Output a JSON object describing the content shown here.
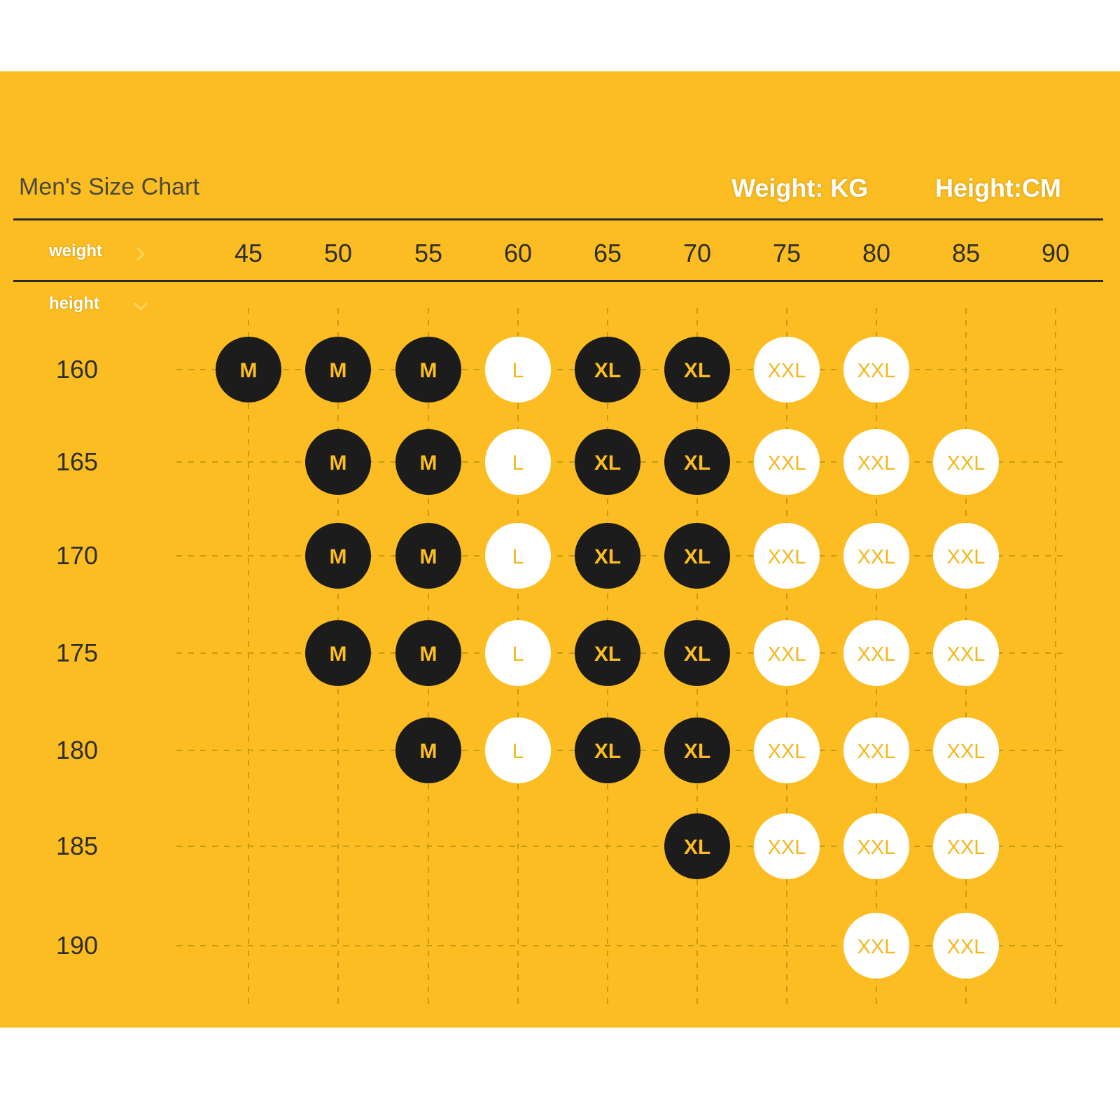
{
  "title": "Men's Size Chart",
  "units": {
    "weight": "Weight: KG",
    "height": "Height:CM"
  },
  "axis": {
    "weight_label": "weight",
    "height_label": "height"
  },
  "colors": {
    "background": "#FBBD22",
    "dark_circle": "#1c1c1c",
    "dark_text": "#FBBD22",
    "light_circle": "#ffffff",
    "light_text": "#F2B81E"
  },
  "icons": {
    "weight_arrow": "chevron-right-icon",
    "height_arrow": "chevron-down-icon"
  },
  "chart_data": {
    "type": "table",
    "weights": [
      "45",
      "50",
      "55",
      "60",
      "65",
      "70",
      "75",
      "80",
      "85",
      "90"
    ],
    "heights": [
      "160",
      "165",
      "170",
      "175",
      "180",
      "185",
      "190"
    ],
    "grid": "dashed",
    "rows": [
      [
        "M",
        "M",
        "M",
        "L",
        "XL",
        "XL",
        "XXL",
        "XXL",
        "",
        ""
      ],
      [
        "",
        "M",
        "M",
        "L",
        "XL",
        "XL",
        "XXL",
        "XXL",
        "XXL",
        ""
      ],
      [
        "",
        "M",
        "M",
        "L",
        "XL",
        "XL",
        "XXL",
        "XXL",
        "XXL",
        ""
      ],
      [
        "",
        "M",
        "M",
        "L",
        "XL",
        "XL",
        "XXL",
        "XXL",
        "XXL",
        ""
      ],
      [
        "",
        "",
        "M",
        "L",
        "XL",
        "XL",
        "XXL",
        "XXL",
        "XXL",
        ""
      ],
      [
        "",
        "",
        "",
        "",
        "",
        "XL",
        "XXL",
        "XXL",
        "XXL",
        ""
      ],
      [
        "",
        "",
        "",
        "",
        "",
        "",
        "",
        "XXL",
        "XXL",
        ""
      ]
    ],
    "dark_sizes": [
      "M",
      "XL"
    ],
    "light_sizes": [
      "L",
      "XXL"
    ]
  }
}
